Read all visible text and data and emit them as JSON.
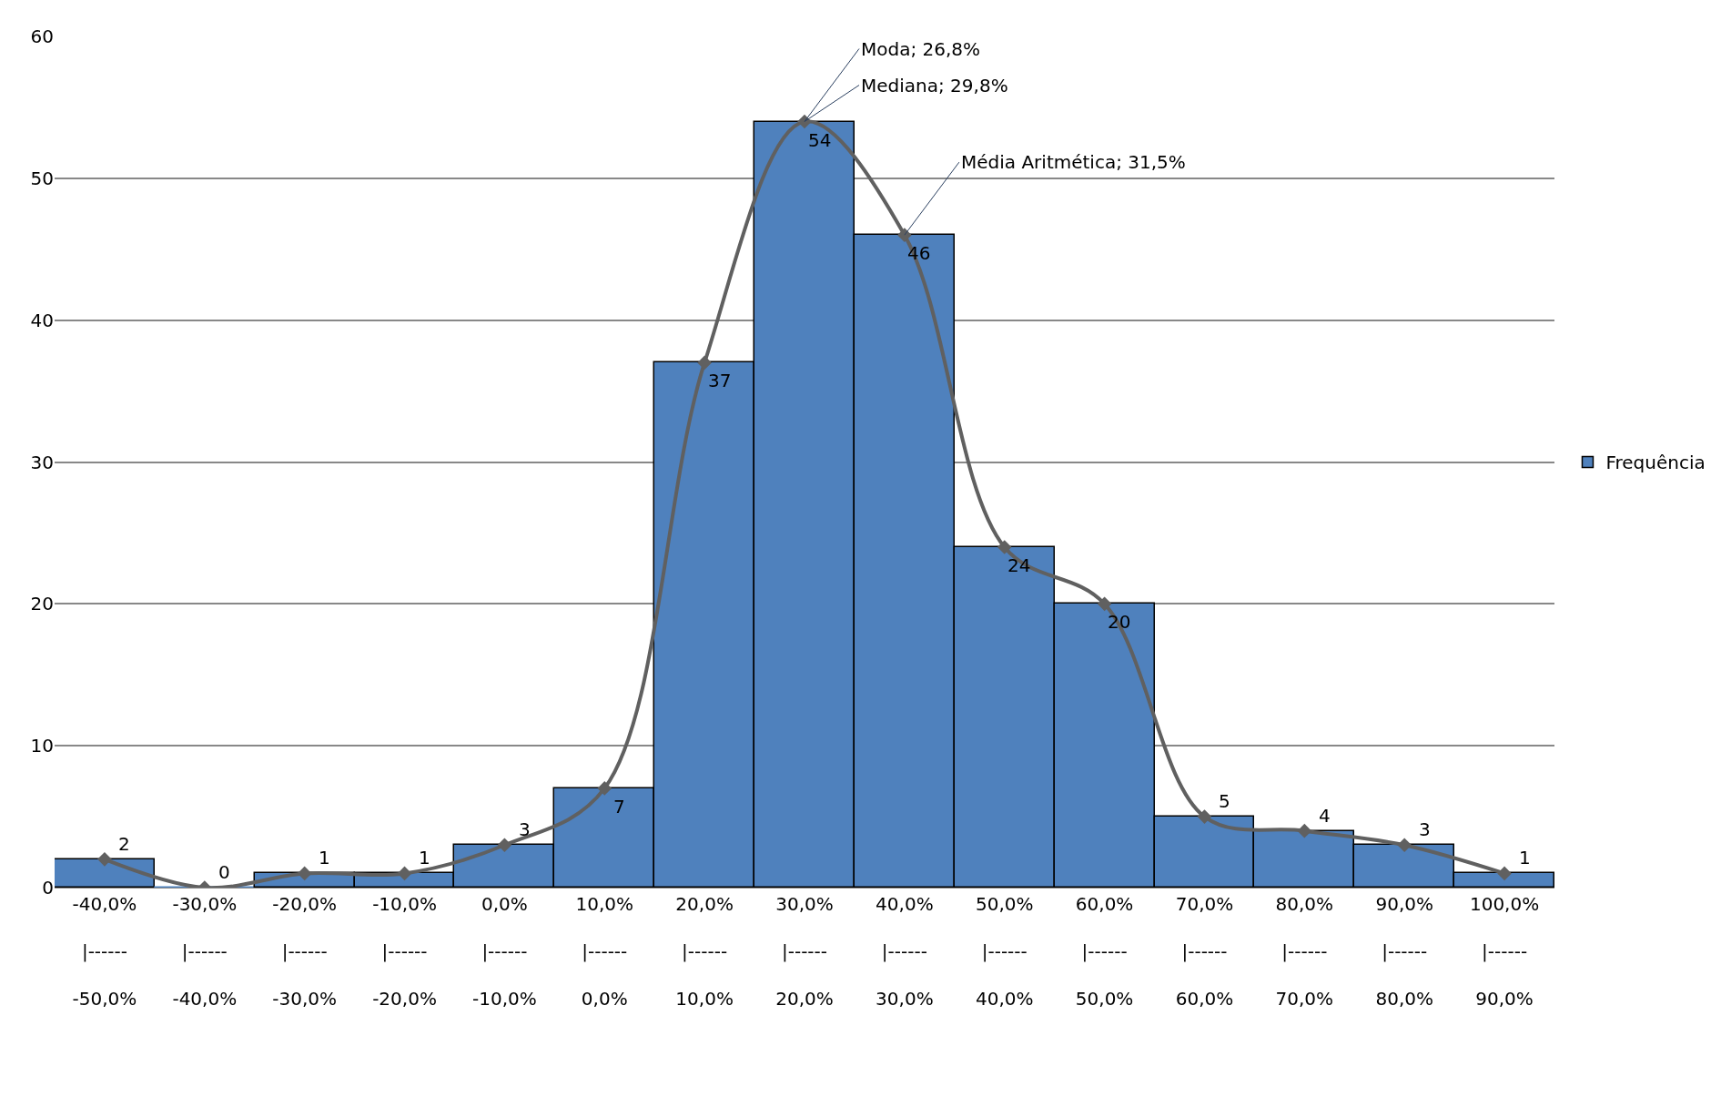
{
  "chart_data": {
    "type": "bar",
    "categories": [
      "-40,0%\n|------\n-50,0%",
      "-30,0%\n|------\n-40,0%",
      "-20,0%\n|------\n-30,0%",
      "-10,0%\n|------\n-20,0%",
      "0,0%\n|------\n-10,0%",
      "10,0%\n|------\n0,0%",
      "20,0%\n|------\n10,0%",
      "30,0%\n|------\n20,0%",
      "40,0%\n|------\n30,0%",
      "50,0%\n|------\n40,0%",
      "60,0%\n|------\n50,0%",
      "70,0%\n|------\n60,0%",
      "80,0%\n|------\n70,0%",
      "90,0%\n|------\n80,0%",
      "100,0%\n|------\n90,0%"
    ],
    "series": [
      {
        "name": "Frequência",
        "type": "bar",
        "color": "#4f81bd",
        "values": [
          2,
          0,
          1,
          1,
          3,
          7,
          37,
          54,
          46,
          24,
          20,
          5,
          4,
          3,
          1
        ],
        "value_labels": [
          "2",
          "0",
          "1",
          "1",
          "3",
          "7",
          "37",
          "54",
          "46",
          "24",
          "20",
          "5",
          "4",
          "3",
          "1"
        ]
      },
      {
        "type": "line",
        "color": "#606060",
        "marker": "diamond",
        "values": [
          2,
          0,
          1,
          1,
          3,
          7,
          37,
          54,
          46,
          24,
          20,
          5,
          4,
          3,
          1
        ]
      }
    ],
    "ylim": [
      0,
      60
    ],
    "yticks": [
      0,
      10,
      20,
      30,
      40,
      50,
      60
    ],
    "grid": "y",
    "legend": "right",
    "annotations": [
      {
        "text": "Moda; 26,8%",
        "x": "30,0%\n|------\n20,0%",
        "y": 54
      },
      {
        "text": "Mediana; 29,8%",
        "x": "30,0%\n|------\n20,0%",
        "y": 54
      },
      {
        "text": "Média Aritmética; 31,5%",
        "x": "40,0%\n|------\n30,0%",
        "y": 46
      }
    ]
  }
}
